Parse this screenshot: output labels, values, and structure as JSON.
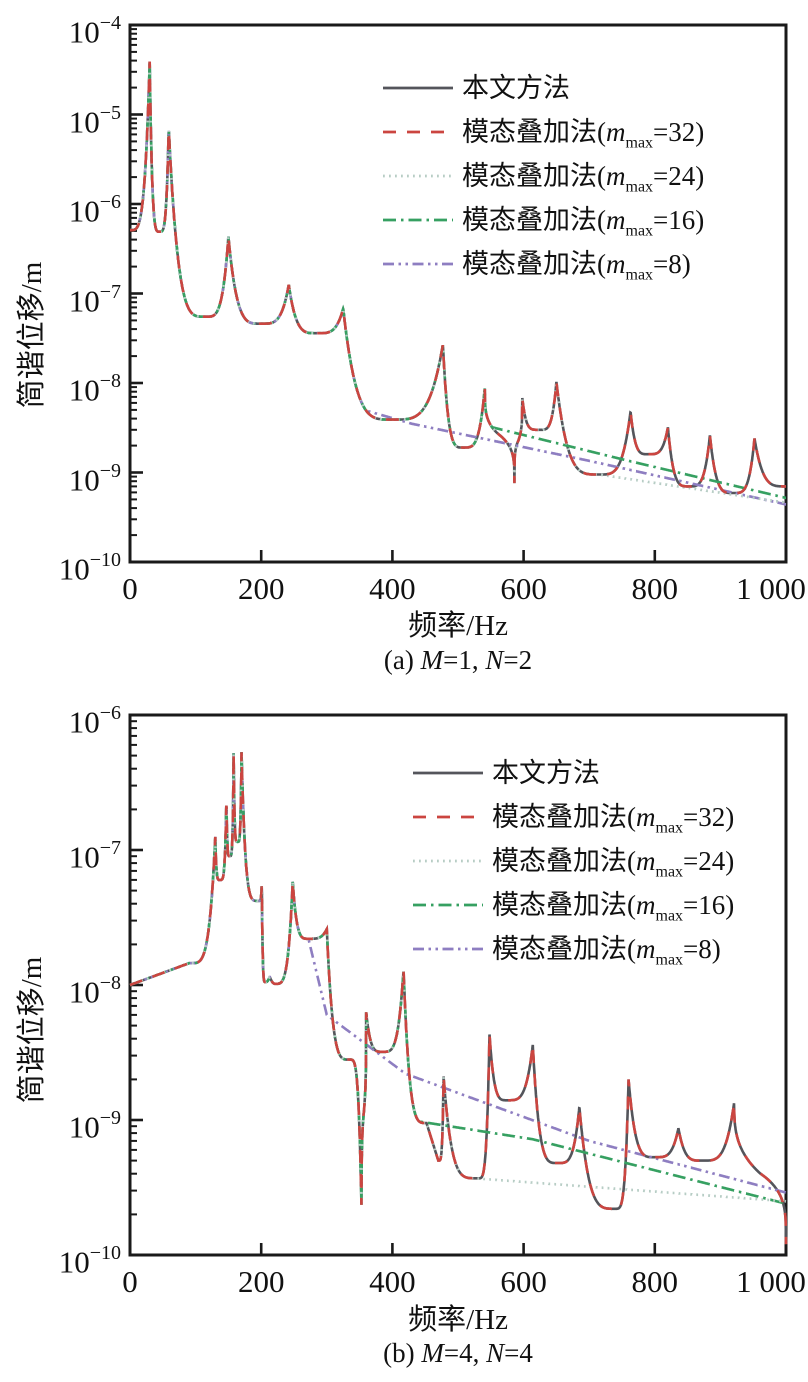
{
  "page": {
    "background": "#ffffff"
  },
  "chart_data": [
    {
      "id": "a",
      "type": "line",
      "caption": {
        "index": "(a)",
        "params": [
          [
            "M",
            "1"
          ],
          [
            "N",
            "2"
          ]
        ]
      },
      "xlabel": "频率/Hz",
      "ylabel": "简谐位移/m",
      "x_axis": {
        "min": 0,
        "max": 1000,
        "ticks": [
          {
            "v": 0,
            "label": "0"
          },
          {
            "v": 200,
            "label": "200"
          },
          {
            "v": 400,
            "label": "400"
          },
          {
            "v": 600,
            "label": "600"
          },
          {
            "v": 800,
            "label": "800"
          },
          {
            "v": 1000,
            "label": "1 000"
          }
        ]
      },
      "y_axis": {
        "scale": "log",
        "unit": "m",
        "top_exponent": -4,
        "bottom_exponent": -10,
        "tick_exponents": [
          -4,
          -5,
          -6,
          -7,
          -8,
          -9,
          -10
        ],
        "minor_ticks": true
      },
      "grid": false,
      "legend_position": "upper-right-inside",
      "series": [
        {
          "key": "benwen",
          "label": "本文方法",
          "mmax": null,
          "color": "#54555b",
          "style": "solid",
          "anchors": [
            [
              0,
              5.1e-07,
              "s"
            ],
            [
              30,
              3.9e-05,
              "p",
              4
            ],
            [
              45,
              4.9e-07,
              "v"
            ],
            [
              59,
              7e-06,
              "p",
              4
            ],
            [
              115,
              5.5e-08,
              "v"
            ],
            [
              150,
              4.3e-07,
              "p",
              4
            ],
            [
              200,
              4.6e-08,
              "v"
            ],
            [
              242,
              1.25e-07,
              "p",
              4
            ],
            [
              285,
              3.6e-08,
              "v"
            ],
            [
              325,
              6.8e-08,
              "p",
              4
            ],
            [
              400,
              3.9e-09,
              "v"
            ],
            [
              477,
              2.7e-08,
              "p",
              4
            ],
            [
              508,
              1.9e-09,
              "v"
            ],
            [
              541,
              9e-09,
              "p",
              4
            ],
            [
              586,
              7.6e-10,
              "n",
              4
            ],
            [
              598,
              6.8e-09,
              "p",
              5
            ],
            [
              625,
              3e-09,
              "s"
            ],
            [
              650,
              1.03e-08,
              "p",
              4
            ],
            [
              715,
              9.5e-10,
              "v"
            ],
            [
              763,
              4.8e-09,
              "p",
              4
            ],
            [
              790,
              1.6e-09,
              "v"
            ],
            [
              820,
              3.2e-09,
              "p",
              4
            ],
            [
              852,
              7e-10,
              "v"
            ],
            [
              884,
              2.6e-09,
              "p",
              4
            ],
            [
              920,
              5.9e-10,
              "v"
            ],
            [
              952,
              2.4e-09,
              "p",
              4
            ],
            [
              1000,
              7e-10,
              "v"
            ]
          ]
        },
        {
          "key": "m32",
          "label": "模态叠加法",
          "mmax": "32",
          "color": "#cb4540",
          "style": "dashed",
          "follows": "benwen",
          "diverge_hz": null,
          "tail": []
        },
        {
          "key": "m24",
          "label": "模态叠加法",
          "mmax": "24",
          "color": "#b7cdc5",
          "style": "dotted",
          "follows": "benwen",
          "diverge_hz": 715,
          "tail": [
            [
              1000,
              4.6e-10
            ]
          ]
        },
        {
          "key": "m16",
          "label": "模态叠加法",
          "mmax": "16",
          "color": "#36a061",
          "style": "dashdot",
          "follows": "benwen",
          "diverge_hz": 552,
          "tail": [
            [
              760,
              1.35e-09
            ],
            [
              1000,
              5.2e-10
            ]
          ]
        },
        {
          "key": "m8",
          "label": "模态叠加法",
          "mmax": "8",
          "color": "#8e7ec1",
          "style": "dashdotdot",
          "follows": "benwen",
          "diverge_hz": 360,
          "tail": [
            [
              430,
              3.5e-09
            ],
            [
              700,
              1.35e-09
            ],
            [
              1000,
              4.4e-10
            ]
          ]
        }
      ]
    },
    {
      "id": "b",
      "type": "line",
      "caption": {
        "index": "(b)",
        "params": [
          [
            "M",
            "4"
          ],
          [
            "N",
            "4"
          ]
        ]
      },
      "xlabel": "频率/Hz",
      "ylabel": "简谐位移/m",
      "x_axis": {
        "min": 0,
        "max": 1000,
        "ticks": [
          {
            "v": 0,
            "label": "0"
          },
          {
            "v": 200,
            "label": "200"
          },
          {
            "v": 400,
            "label": "400"
          },
          {
            "v": 600,
            "label": "600"
          },
          {
            "v": 800,
            "label": "800"
          },
          {
            "v": 1000,
            "label": "1 000"
          }
        ]
      },
      "y_axis": {
        "scale": "log",
        "unit": "m",
        "top_exponent": -6,
        "bottom_exponent": -10,
        "tick_exponents": [
          -6,
          -7,
          -8,
          -9,
          -10
        ],
        "minor_ticks": true
      },
      "grid": false,
      "legend_position": "upper-right-inside",
      "series": [
        {
          "key": "benwen",
          "label": "本文方法",
          "mmax": null,
          "color": "#54555b",
          "style": "solid",
          "anchors": [
            [
              0,
              1e-08,
              "s"
            ],
            [
              90,
              1.45e-08,
              "s"
            ],
            [
              130,
              1.25e-07,
              "p",
              4.5
            ],
            [
              137,
              6e-08,
              "v"
            ],
            [
              147,
              2.4e-07,
              "p",
              4.5
            ],
            [
              152,
              9e-08,
              "v"
            ],
            [
              158,
              5.2e-07,
              "p",
              4.5
            ],
            [
              164,
              1.15e-07,
              "v"
            ],
            [
              170,
              5.3e-07,
              "p",
              4.5
            ],
            [
              196,
              4.2e-08,
              "v"
            ],
            [
              201,
              5.7e-08,
              "p",
              5
            ],
            [
              207,
              1.05e-08,
              "v"
            ],
            [
              213,
              1.15e-08,
              "p",
              2
            ],
            [
              221,
              1.02e-08,
              "v"
            ],
            [
              248,
              5.8e-08,
              "p",
              4
            ],
            [
              272,
              2.2e-08,
              "v"
            ],
            [
              300,
              2.6e-08,
              "p",
              4
            ],
            [
              335,
              2.8e-09,
              "s"
            ],
            [
              353,
              2.1e-10,
              "n",
              4
            ],
            [
              360,
              6.3e-09,
              "p",
              4
            ],
            [
              385,
              3.2e-09,
              "v"
            ],
            [
              417,
              1.3e-08,
              "p",
              4
            ],
            [
              452,
              9.5e-10,
              "s"
            ],
            [
              470,
              5e-10,
              "v"
            ],
            [
              478,
              2.1e-09,
              "p",
              4.5
            ],
            [
              531,
              3.7e-10,
              "v"
            ],
            [
              548,
              4.3e-09,
              "p",
              4
            ],
            [
              575,
              1.4e-09,
              "v"
            ],
            [
              614,
              3.6e-09,
              "p",
              4
            ],
            [
              652,
              4.8e-10,
              "v"
            ],
            [
              685,
              1.25e-09,
              "p",
              4
            ],
            [
              740,
              2.2e-10,
              "v"
            ],
            [
              760,
              2e-09,
              "p",
              4
            ],
            [
              800,
              5.3e-10,
              "v"
            ],
            [
              836,
              8.7e-10,
              "p",
              4
            ],
            [
              872,
              5e-10,
              "v"
            ],
            [
              921,
              1.35e-09,
              "p",
              4
            ],
            [
              1000,
              1.2e-10,
              "n",
              3
            ]
          ]
        },
        {
          "key": "m32",
          "label": "模态叠加法",
          "mmax": "32",
          "color": "#cb4540",
          "style": "dashed",
          "follows": "benwen",
          "diverge_hz": null,
          "tail": []
        },
        {
          "key": "m24",
          "label": "模态叠加法",
          "mmax": "24",
          "color": "#b7cdc5",
          "style": "dotted",
          "follows": "benwen",
          "diverge_hz": 525,
          "tail": [
            [
              1000,
              2.5e-10
            ]
          ]
        },
        {
          "key": "m16",
          "label": "模态叠加法",
          "mmax": "16",
          "color": "#36a061",
          "style": "dashdot",
          "follows": "benwen",
          "diverge_hz": 441,
          "tail": [
            [
              614,
              7.2e-10
            ],
            [
              1000,
              2.4e-10
            ]
          ]
        },
        {
          "key": "m8",
          "label": "模态叠加法",
          "mmax": "8",
          "color": "#8e7ec1",
          "style": "dashdotdot",
          "follows": "benwen",
          "diverge_hz": 272,
          "tail": [
            [
              300,
              6e-09
            ],
            [
              420,
              2.2e-09
            ],
            [
              700,
              7e-10
            ],
            [
              1000,
              2.9e-10
            ]
          ]
        }
      ]
    }
  ]
}
